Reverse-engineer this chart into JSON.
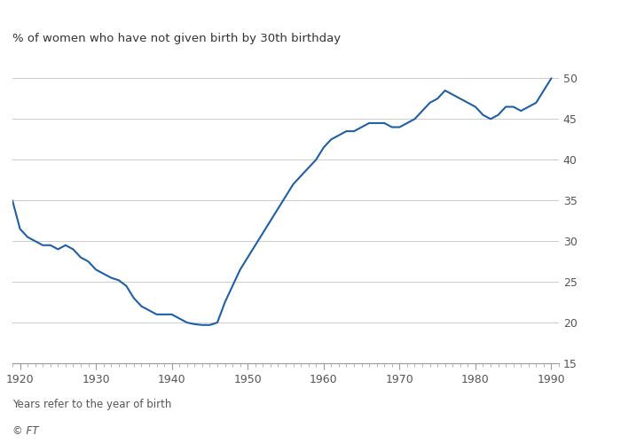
{
  "title": "% of women who have not given birth by 30th birthday",
  "footnote": "Years refer to the year of birth",
  "credit": "© FT",
  "line_color": "#1f5fa6",
  "background_color": "#ffffff",
  "xlim": [
    1919,
    1991
  ],
  "ylim": [
    15,
    52
  ],
  "yticks": [
    15,
    20,
    25,
    30,
    35,
    40,
    45,
    50
  ],
  "xticks": [
    1920,
    1930,
    1940,
    1950,
    1960,
    1970,
    1980,
    1990
  ],
  "x": [
    1919,
    1920,
    1921,
    1922,
    1923,
    1924,
    1925,
    1926,
    1927,
    1928,
    1929,
    1930,
    1931,
    1932,
    1933,
    1934,
    1935,
    1936,
    1937,
    1938,
    1939,
    1940,
    1941,
    1942,
    1943,
    1944,
    1945,
    1946,
    1947,
    1948,
    1949,
    1950,
    1951,
    1952,
    1953,
    1954,
    1955,
    1956,
    1957,
    1958,
    1959,
    1960,
    1961,
    1962,
    1963,
    1964,
    1965,
    1966,
    1967,
    1968,
    1969,
    1970,
    1971,
    1972,
    1973,
    1974,
    1975,
    1976,
    1977,
    1978,
    1979,
    1980,
    1981,
    1982,
    1983,
    1984,
    1985,
    1986,
    1987,
    1988,
    1989,
    1990
  ],
  "y": [
    35.0,
    31.5,
    30.5,
    30.0,
    29.5,
    29.5,
    29.0,
    29.5,
    29.0,
    28.0,
    27.5,
    26.5,
    26.0,
    25.5,
    25.2,
    24.5,
    23.0,
    22.0,
    21.5,
    21.0,
    21.0,
    21.0,
    20.5,
    20.0,
    19.8,
    19.7,
    19.7,
    20.0,
    22.5,
    24.5,
    26.5,
    28.0,
    29.5,
    31.0,
    32.5,
    34.0,
    35.5,
    37.0,
    38.0,
    39.0,
    40.0,
    41.5,
    42.5,
    43.0,
    43.5,
    43.5,
    44.0,
    44.5,
    44.5,
    44.5,
    44.0,
    44.0,
    44.5,
    45.0,
    46.0,
    47.0,
    47.5,
    48.5,
    48.0,
    47.5,
    47.0,
    46.5,
    45.5,
    45.0,
    45.5,
    46.5,
    46.5,
    46.0,
    46.5,
    47.0,
    48.5,
    50.0
  ]
}
